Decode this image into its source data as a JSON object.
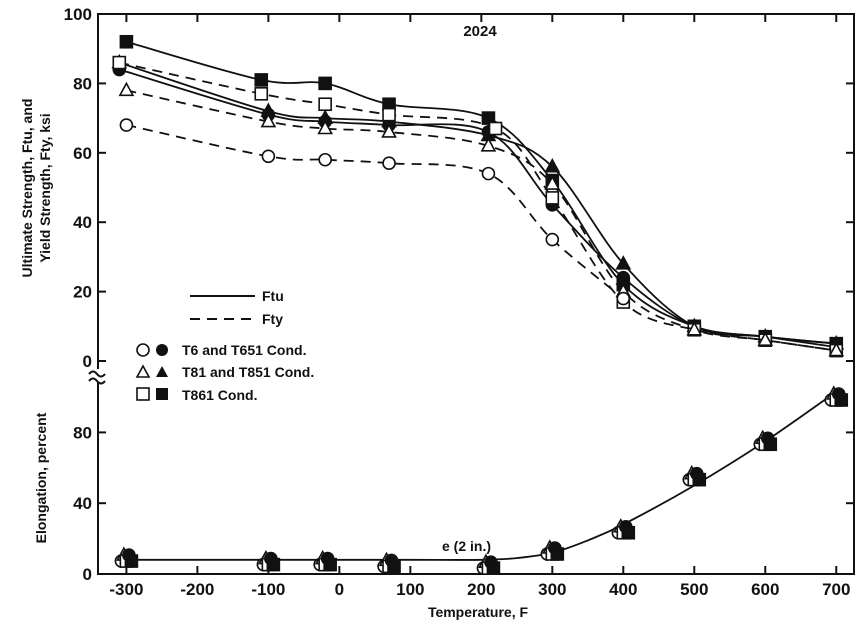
{
  "chart_data": [
    {
      "type": "line",
      "title": "2024",
      "xlabel": "Temperature, F",
      "ylabel_line1": "Ultimate Strength, Ftu, and",
      "ylabel_line2": "Yield Strength, Fty, ksi",
      "xlim": [
        -340,
        725
      ],
      "ylim": [
        0,
        100
      ],
      "x_ticks": [
        "-300",
        "-200",
        "-100",
        "0",
        "100",
        "200",
        "300",
        "400",
        "500",
        "600",
        "700"
      ],
      "y_ticks": [
        "0",
        "20",
        "40",
        "60",
        "80",
        "100"
      ],
      "legend": {
        "ftu_label": "Ftu",
        "fty_label": "Fty",
        "t6_label": "T6 and T651 Cond.",
        "t81_label": "T81 and T851 Cond.",
        "t861_label": "T861 Cond."
      },
      "series": [
        {
          "name": "T861 Cond.",
          "property": "Ftu",
          "marker": "square-filled",
          "style": "solid",
          "x": [
            -300,
            -110,
            -20,
            70,
            210,
            300,
            400,
            500,
            600,
            700
          ],
          "y": [
            92,
            81,
            80,
            74,
            70,
            52,
            22,
            10,
            7,
            5
          ]
        },
        {
          "name": "T81 and T851 Cond.",
          "property": "Ftu",
          "marker": "triangle-filled",
          "style": "solid",
          "x": [
            -310,
            -100,
            -20,
            70,
            210,
            300,
            400,
            500,
            600,
            700
          ],
          "y": [
            86,
            72,
            70,
            69,
            65,
            56,
            28,
            10,
            7,
            5
          ]
        },
        {
          "name": "T6 and T651 Cond.",
          "property": "Ftu",
          "marker": "circle-filled",
          "style": "solid",
          "x": [
            -310,
            -100,
            -20,
            70,
            210,
            300,
            400,
            500,
            600,
            700
          ],
          "y": [
            84,
            71,
            69,
            68,
            66,
            45,
            24,
            10,
            7,
            4
          ]
        },
        {
          "name": "T861 Cond.",
          "property": "Fty",
          "marker": "square-open",
          "style": "dashed",
          "x": [
            -310,
            -110,
            -20,
            70,
            220,
            300,
            400,
            500,
            600,
            700
          ],
          "y": [
            86,
            77,
            74,
            71,
            67,
            47,
            17,
            9,
            6,
            3
          ]
        },
        {
          "name": "T81 and T851 Cond.",
          "property": "Fty",
          "marker": "triangle-open",
          "style": "dashed",
          "x": [
            -300,
            -100,
            -20,
            70,
            210,
            300,
            400,
            500,
            600,
            700
          ],
          "y": [
            78,
            69,
            67,
            66,
            62,
            51,
            20,
            9,
            6,
            3
          ]
        },
        {
          "name": "T6 and T651 Cond.",
          "property": "Fty",
          "marker": "circle-open",
          "style": "dashed",
          "x": [
            -300,
            -100,
            -20,
            70,
            210,
            300,
            400
          ],
          "y": [
            68,
            59,
            58,
            57,
            54,
            35,
            18
          ]
        }
      ]
    },
    {
      "type": "line",
      "xlabel": "Temperature, F",
      "ylabel": "Elongation, percent",
      "annotation": "e (2 in.)",
      "xlim": [
        -340,
        725
      ],
      "ylim": [
        0,
        110
      ],
      "y_ticks": [
        "0",
        "40",
        "80"
      ],
      "curve": {
        "x": [
          -300,
          -100,
          0,
          100,
          200,
          250,
          300,
          350,
          400,
          500,
          600,
          700
        ],
        "y": [
          8,
          8,
          8,
          8,
          8,
          9,
          12,
          19,
          28,
          50,
          75,
          103
        ]
      },
      "points": {
        "x": [
          -300,
          -100,
          -20,
          70,
          210,
          300,
          400,
          500,
          600,
          700
        ],
        "y": [
          9,
          7,
          7,
          6,
          5,
          13,
          25,
          55,
          75,
          100
        ]
      }
    }
  ]
}
